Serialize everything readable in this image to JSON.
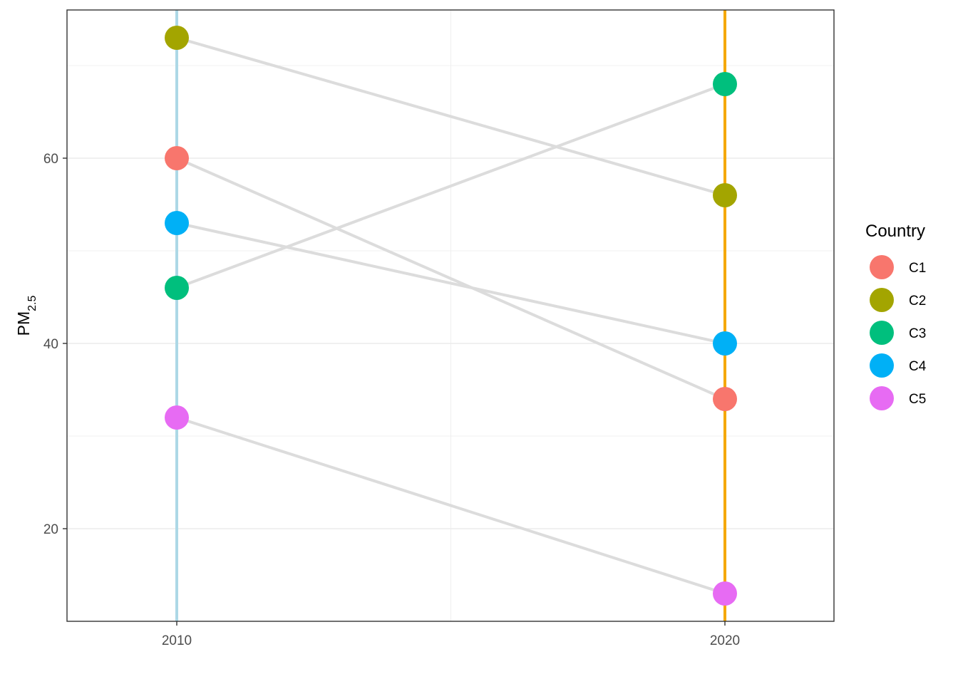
{
  "chart_data": {
    "type": "line",
    "title": "",
    "xlabel": "",
    "ylabel": "PM",
    "ylabel_subscript": "2.5",
    "x": [
      "2010",
      "2020"
    ],
    "ylim": [
      10,
      76
    ],
    "yticks": [
      20,
      40,
      60
    ],
    "ytick_labels": [
      "20",
      "40",
      "60"
    ],
    "grid": true,
    "legend": {
      "title": "Country",
      "position": "right"
    },
    "line_color": "#dcdcdc",
    "reference_lines": [
      {
        "x": "2010",
        "color": "#add8e6"
      },
      {
        "x": "2020",
        "color": "#f5a800"
      }
    ],
    "series": [
      {
        "name": "C1",
        "color": "#F8766D",
        "values": [
          60,
          34
        ]
      },
      {
        "name": "C2",
        "color": "#A3A500",
        "values": [
          73,
          56
        ]
      },
      {
        "name": "C3",
        "color": "#00BF7D",
        "values": [
          46,
          68
        ]
      },
      {
        "name": "C4",
        "color": "#00B0F6",
        "values": [
          53,
          40
        ]
      },
      {
        "name": "C5",
        "color": "#E76BF3",
        "values": [
          32,
          13
        ]
      }
    ]
  }
}
